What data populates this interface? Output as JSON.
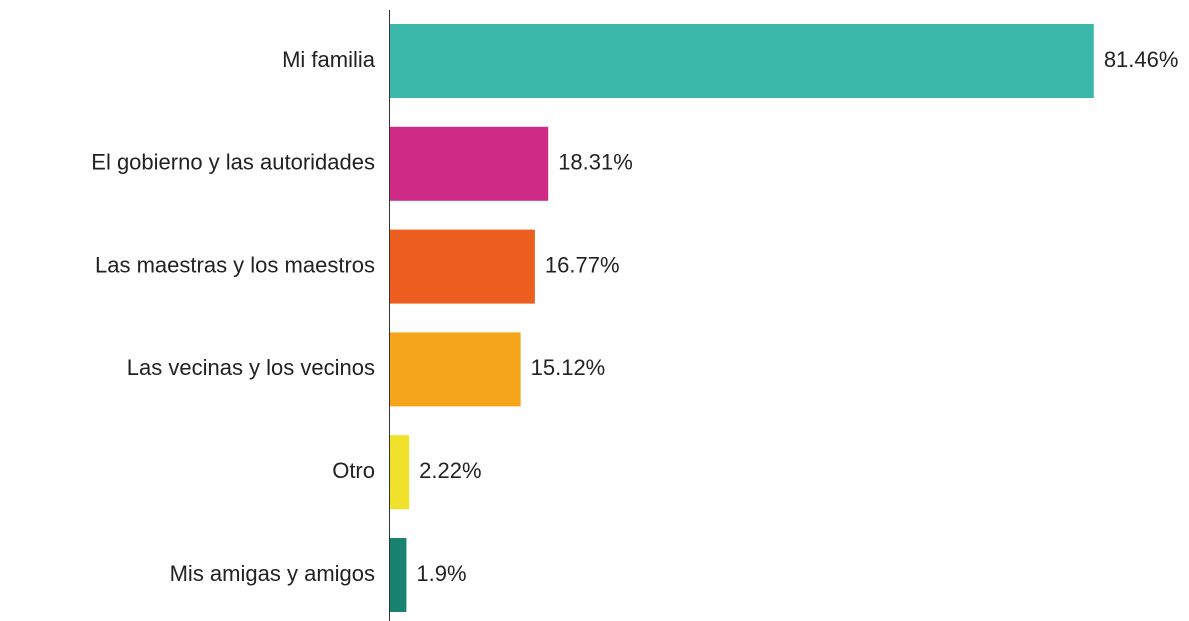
{
  "chart_data": {
    "type": "bar",
    "orientation": "horizontal",
    "categories": [
      "Mi familia",
      "El gobierno y las autoridades",
      "Las maestras y los maestros",
      "Las vecinas y los vecinos",
      "Otro",
      "Mis amigas y amigos"
    ],
    "values": [
      81.46,
      18.31,
      16.77,
      15.12,
      2.22,
      1.9
    ],
    "value_labels": [
      "81.46%",
      "18.31%",
      "16.77%",
      "15.12%",
      "2.22%",
      "1.9%"
    ],
    "colors": [
      "#3bb8a9",
      "#cf2a86",
      "#ec5f1f",
      "#f5a519",
      "#f0e12a",
      "#1a8270"
    ]
  }
}
